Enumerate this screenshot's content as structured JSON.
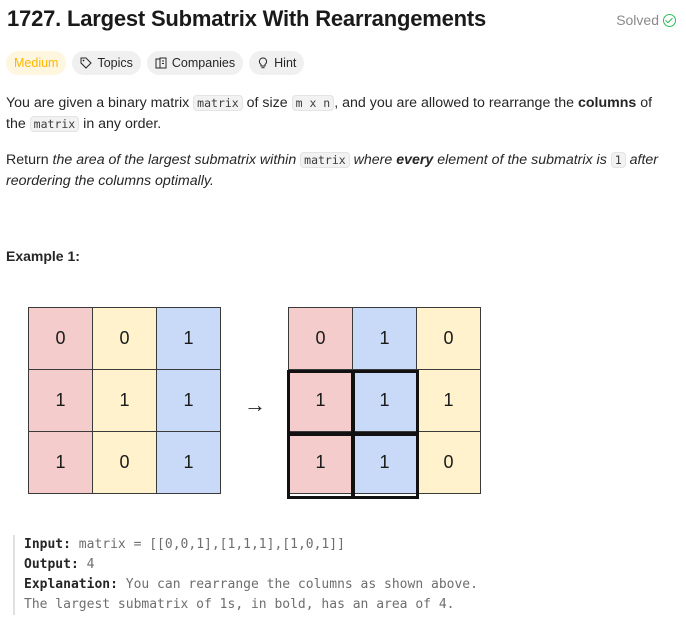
{
  "header": {
    "title": "1727. Largest Submatrix With Rearrangements",
    "status": "Solved"
  },
  "tags": {
    "difficulty": "Medium",
    "topics": "Topics",
    "companies": "Companies",
    "hint": "Hint"
  },
  "description": {
    "p1_a": "You are given a binary matrix ",
    "p1_code1": "matrix",
    "p1_b": " of size ",
    "p1_code2": "m x n",
    "p1_c": ", and you are allowed to rearrange the ",
    "p1_bold": "columns",
    "p1_d": " of",
    "p1_e": "the ",
    "p1_code3": "matrix",
    "p1_f": " in any order.",
    "p2_a": "Return ",
    "p2_em1": "the area of the largest submatrix within ",
    "p2_code1": "matrix",
    "p2_em2": " where ",
    "p2_bold": "every",
    "p2_em3": " element of the submatrix is ",
    "p2_code2": "1",
    "p2_em4": " after",
    "p2_em5": "reordering the columns optimally."
  },
  "example": {
    "title": "Example 1:",
    "before": [
      [
        "0",
        "0",
        "1"
      ],
      [
        "1",
        "1",
        "1"
      ],
      [
        "1",
        "0",
        "1"
      ]
    ],
    "after": [
      [
        "0",
        "1",
        "0"
      ],
      [
        "1",
        "1",
        "1"
      ],
      [
        "1",
        "1",
        "0"
      ]
    ],
    "arrow": "→",
    "input_label": "Input:",
    "input_value": " matrix = [[0,0,1],[1,1,1],[1,0,1]]",
    "output_label": "Output:",
    "output_value": " 4",
    "explanation_label": "Explanation:",
    "explanation_line1": " You can rearrange the columns as shown above.",
    "explanation_line2": "The largest submatrix of 1s, in bold, has an area of 4."
  }
}
